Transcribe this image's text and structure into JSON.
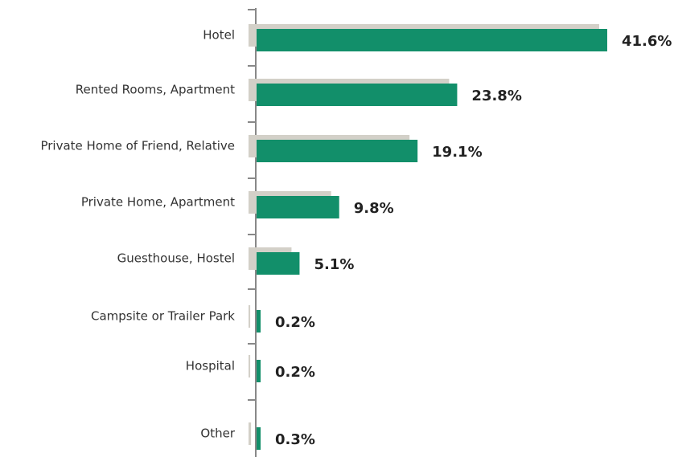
{
  "chart_data": {
    "type": "bar",
    "orientation": "horizontal",
    "color": "#128f6a",
    "categories": [
      "Hotel",
      "Rented Rooms, Apartment",
      "Private Home of Friend, Relative",
      "Private Home, Apartment",
      "Guesthouse, Hostel",
      "Campsite or Trailer Park",
      "Hospital",
      "Other"
    ],
    "values": [
      41.6,
      23.8,
      19.1,
      9.8,
      5.1,
      0.2,
      0.2,
      0.3
    ],
    "value_labels": [
      "41.6%",
      "23.8%",
      "19.1%",
      "9.8%",
      "5.1%",
      "0.2%",
      "0.2%",
      "0.3%"
    ]
  }
}
